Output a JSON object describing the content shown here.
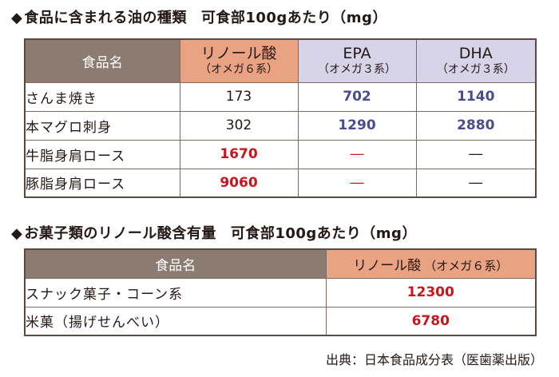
{
  "section1": {
    "heading_mark": "◆",
    "heading": "食品に含まれる油の種類",
    "note": "可食部100gあたり（mg）",
    "headers": {
      "food": "食品名",
      "linoleic": "リノール酸",
      "linoleic_sub": "（オメガ６系）",
      "epa": "EPA",
      "epa_sub": "（オメガ３系）",
      "dha": "DHA",
      "dha_sub": "（オメガ３系）"
    },
    "rows": [
      {
        "name": "さんま焼き",
        "linoleic": "173",
        "epa": "702",
        "dha": "1140"
      },
      {
        "name": "本マグロ刺身",
        "linoleic": "302",
        "epa": "1290",
        "dha": "2880"
      },
      {
        "name": "牛脂身肩ロース",
        "linoleic": "1670",
        "epa": "―",
        "dha": "―"
      },
      {
        "name": "豚脂身肩ロース",
        "linoleic": "9060",
        "epa": "―",
        "dha": "―"
      }
    ]
  },
  "section2": {
    "heading_mark": "◆",
    "heading": "お菓子類のリノール酸含有量",
    "note": "可食部100gあたり（mg）",
    "headers": {
      "food": "食品名",
      "linoleic": "リノール酸",
      "linoleic_sub": "（オメガ６系）"
    },
    "rows": [
      {
        "name": "スナック菓子・コーン系",
        "linoleic": "12300"
      },
      {
        "name": "米菓（揚げせんべい）",
        "linoleic": "6780"
      }
    ]
  },
  "source": "出典：日本食品成分表（医歯薬出版）",
  "colors": {
    "header_gray": "#8c7b71",
    "header_orange": "#e9a282",
    "header_lavender": "#d7d3e9",
    "value_red": "#c8161d",
    "value_purple": "#4d4a8e"
  }
}
